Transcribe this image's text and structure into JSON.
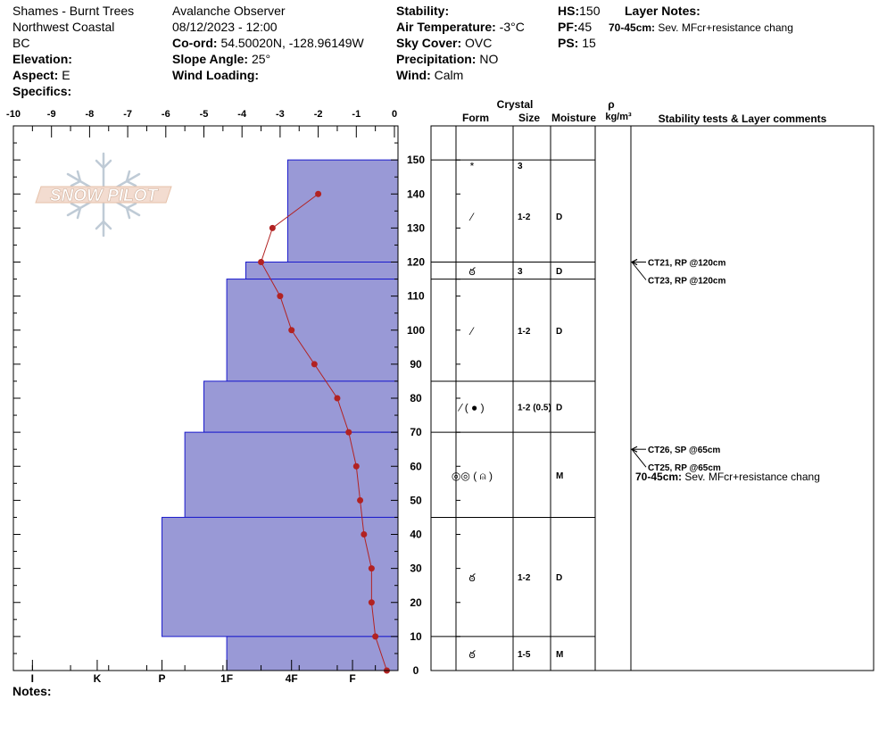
{
  "header": {
    "site": "Shames - Burnt Trees",
    "range": "Northwest Coastal",
    "region": "BC",
    "elevation_label": "Elevation:",
    "elevation_value": "",
    "aspect_label": "Aspect:",
    "aspect_value": "E",
    "specifics_label": "Specifics:",
    "specifics_value": "",
    "observer": "Avalanche Observer",
    "datetime": "08/12/2023 - 12:00",
    "coord_label": "Co-ord:",
    "coord_value": "54.50020N, -128.96149W",
    "slope_label": "Slope Angle:",
    "slope_value": "25°",
    "wind_loading_label": "Wind Loading:",
    "wind_loading_value": "",
    "stability_label": "Stability:",
    "stability_value": "",
    "air_temp_label": "Air Temperature:",
    "air_temp_value": "-3°C",
    "sky_label": "Sky Cover:",
    "sky_value": "OVC",
    "precip_label": "Precipitation:",
    "precip_value": "NO",
    "wind_label": "Wind:",
    "wind_value": "Calm",
    "hs_label": "HS:",
    "hs_value": "150",
    "pf_label": "PF:",
    "pf_value": "45",
    "ps_label": "PS:",
    "ps_value": "15",
    "layer_notes_label": "Layer Notes:",
    "layer_notes_range": "70-45cm:",
    "layer_notes_text": "Sev. MFcr+resistance chang"
  },
  "logo_text": "SNOW PILOT",
  "notes_label": "Notes:",
  "table_headers": {
    "crystal": "Crystal",
    "form": "Form",
    "size": "Size",
    "moisture": "Moisture",
    "rho": "ρ",
    "density_unit": "kg/m³",
    "comments": "Stability tests & Layer comments"
  },
  "chart_data": {
    "type": "line",
    "temperature_axis": {
      "label": "",
      "ticks": [
        -10,
        -9,
        -8,
        -7,
        -6,
        -5,
        -4,
        -3,
        -2,
        -1,
        0
      ],
      "range": [
        -10,
        0
      ]
    },
    "hardness_axis": {
      "ticks": [
        "I",
        "K",
        "P",
        "1F",
        "4F",
        "F"
      ]
    },
    "depth_axis": {
      "label": "",
      "ticks": [
        0,
        10,
        20,
        30,
        40,
        50,
        60,
        70,
        80,
        90,
        100,
        110,
        120,
        130,
        140,
        150
      ],
      "range": [
        0,
        150
      ]
    },
    "temperature_profile": [
      {
        "depth": 140,
        "temp": -2.0
      },
      {
        "depth": 130,
        "temp": -3.2
      },
      {
        "depth": 120,
        "temp": -3.5
      },
      {
        "depth": 110,
        "temp": -3.0
      },
      {
        "depth": 100,
        "temp": -2.7
      },
      {
        "depth": 90,
        "temp": -2.1
      },
      {
        "depth": 80,
        "temp": -1.5
      },
      {
        "depth": 70,
        "temp": -1.2
      },
      {
        "depth": 60,
        "temp": -1.0
      },
      {
        "depth": 50,
        "temp": -0.9
      },
      {
        "depth": 40,
        "temp": -0.8
      },
      {
        "depth": 30,
        "temp": -0.6
      },
      {
        "depth": 20,
        "temp": -0.6
      },
      {
        "depth": 10,
        "temp": -0.5
      },
      {
        "depth": 0,
        "temp": -0.2
      }
    ],
    "hardness_layers": [
      {
        "top": 150,
        "bottom": 120,
        "hardness_temp_units": -2.8
      },
      {
        "top": 120,
        "bottom": 115,
        "hardness_temp_units": -3.9
      },
      {
        "top": 115,
        "bottom": 85,
        "hardness_temp_units": -4.4
      },
      {
        "top": 85,
        "bottom": 70,
        "hardness_temp_units": -5.0
      },
      {
        "top": 70,
        "bottom": 45,
        "hardness_temp_units": -5.5
      },
      {
        "top": 45,
        "bottom": 10,
        "hardness_temp_units": -6.1
      },
      {
        "top": 10,
        "bottom": 0,
        "hardness_temp_units": -4.4
      }
    ],
    "layers": [
      {
        "top": 150,
        "bottom": 147,
        "form": "*",
        "size": "3",
        "moisture": ""
      },
      {
        "top": 147,
        "bottom": 120,
        "form": "⁄",
        "size": "1-2",
        "moisture": "D"
      },
      {
        "top": 120,
        "bottom": 115,
        "form": "ఠ",
        "size": "3",
        "moisture": "D"
      },
      {
        "top": 115,
        "bottom": 85,
        "form": "⁄",
        "size": "1-2",
        "moisture": "D"
      },
      {
        "top": 85,
        "bottom": 70,
        "form": "⁄ ( ● )",
        "size": "1-2 (0.5)",
        "moisture": "D"
      },
      {
        "top": 70,
        "bottom": 45,
        "form": "◎◎ ( ⍝ )",
        "size": "",
        "moisture": "M"
      },
      {
        "top": 45,
        "bottom": 10,
        "form": "ఠ",
        "size": "1-2",
        "moisture": "D"
      },
      {
        "top": 10,
        "bottom": 0,
        "form": "ఠ",
        "size": "1-5",
        "moisture": "M"
      }
    ],
    "stability_tests": [
      {
        "depth": 120,
        "text": "CT21, RP @120cm"
      },
      {
        "depth": 120,
        "text": "CT23, RP @120cm"
      },
      {
        "depth": 65,
        "text": "CT26, SP @65cm"
      },
      {
        "depth": 65,
        "text": "CT25, RP @65cm"
      }
    ],
    "layer_comments": [
      {
        "range": "70-45cm:",
        "text": "Sev. MFcr+resistance chang"
      }
    ]
  }
}
